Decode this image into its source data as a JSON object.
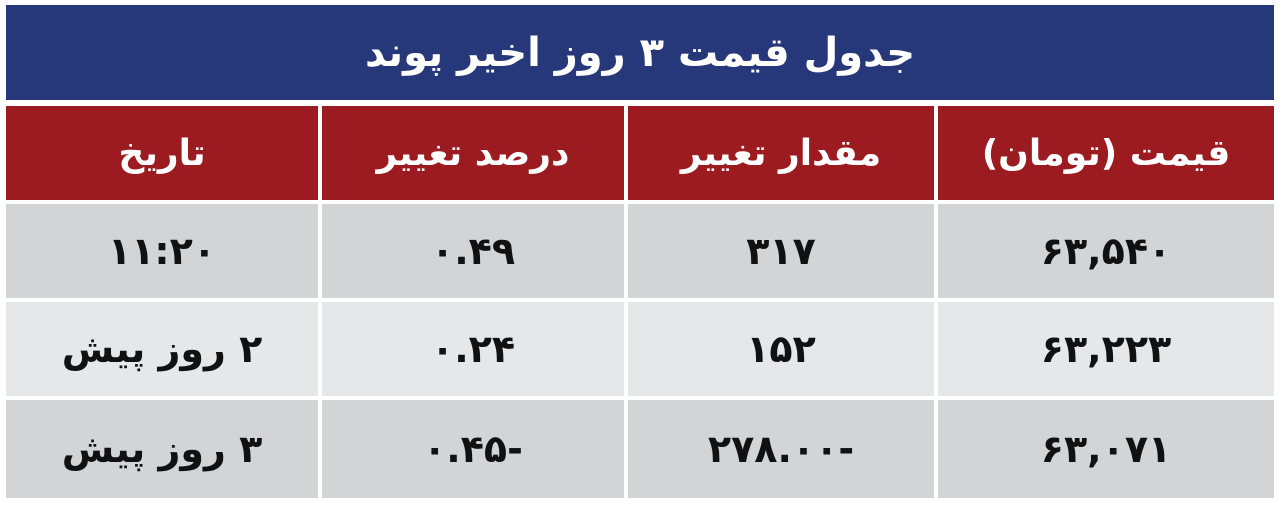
{
  "title": "جدول قیمت ۳ روز اخیر پوند",
  "colors": {
    "title_bg": "#27387a",
    "header_bg": "#9b1b20",
    "row_dark": "#d3d4d6",
    "row_light": "#e6e7e8"
  },
  "table": {
    "headers": [
      "قیمت (تومان)",
      "مقدار تغییر",
      "درصد تغییر",
      "تاریخ"
    ],
    "rows": [
      [
        "۶۳,۵۴۰",
        "۳۱۷",
        "۰.۴۹",
        "۱۱:۲۰"
      ],
      [
        "۶۳,۲۲۳",
        "۱۵۲",
        "۰.۲۴",
        "۲ روز پیش"
      ],
      [
        "۶۳,۰۷۱",
        "-۲۷۸.۰۰",
        "-۰.۴۵",
        "۳ روز پیش"
      ]
    ]
  }
}
